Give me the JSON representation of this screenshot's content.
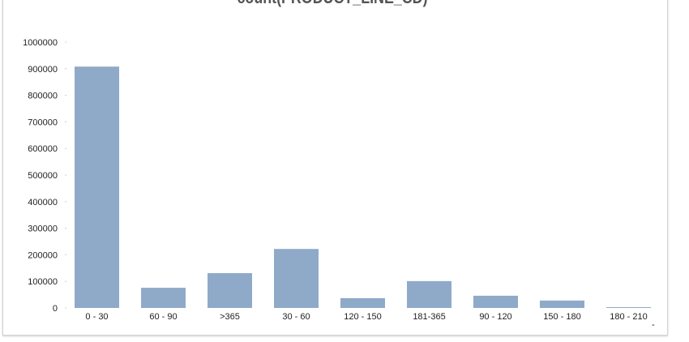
{
  "chart_data": {
    "type": "bar",
    "title": "count(PRODUCT_LINE_CD)",
    "xlabel": "",
    "ylabel": "",
    "categories": [
      "0 - 30",
      "60 - 90",
      ">365",
      "30 - 60",
      "120 - 150",
      "181-365",
      "90 - 120",
      "150 - 180",
      "180 - 210"
    ],
    "values": [
      908000,
      76000,
      131000,
      222000,
      37000,
      101000,
      46000,
      28000,
      3000
    ],
    "ylim": [
      0,
      1000000
    ],
    "yticks": [
      "0",
      "100000",
      "200000",
      "300000",
      "400000",
      "500000",
      "600000",
      "700000",
      "800000",
      "900000",
      "1000000"
    ],
    "grid": false,
    "legend": "none",
    "bar_color": "#8faac9",
    "x_axis_end_mark": "-"
  }
}
